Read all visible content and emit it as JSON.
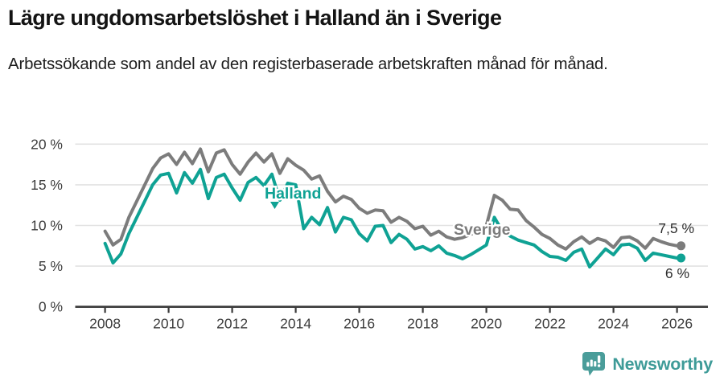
{
  "chart_data": {
    "type": "line",
    "title": "Lägre ungdomsarbetslöshet i Halland än i Sverige",
    "subtitle": "Arbetssökande som andel av den registerbaserade arbetskraften månad för månad.",
    "x_start_year": 2008,
    "x_interval_years": 0.25,
    "xlim": [
      2008,
      2026.25
    ],
    "ylim": [
      0,
      21
    ],
    "grid": true,
    "legend": "inline-labels",
    "x_ticks": [
      2008,
      2010,
      2012,
      2014,
      2016,
      2018,
      2020,
      2022,
      2024,
      2026
    ],
    "x_tick_labels": [
      "2008",
      "2010",
      "2012",
      "2014",
      "2016",
      "2018",
      "2020",
      "2022",
      "2024",
      "2026"
    ],
    "y_ticks": [
      0,
      5,
      10,
      15,
      20
    ],
    "y_tick_labels": [
      "0 %",
      "5 %",
      "10 %",
      "15 %",
      "20 %"
    ],
    "series": [
      {
        "name": "Sverige",
        "color": "#7c7c7c",
        "end_label": "7,5 %",
        "end_value": 7.5,
        "values": [
          9.3,
          7.6,
          8.3,
          11.0,
          13.0,
          15.0,
          17.0,
          18.3,
          18.8,
          17.5,
          19.0,
          17.6,
          19.4,
          16.6,
          18.9,
          19.3,
          17.5,
          16.3,
          17.8,
          18.9,
          17.8,
          18.8,
          16.4,
          18.2,
          17.4,
          16.8,
          15.7,
          16.1,
          14.2,
          12.9,
          13.6,
          13.2,
          12.1,
          11.5,
          11.9,
          11.8,
          10.4,
          11.0,
          10.5,
          9.6,
          9.9,
          8.8,
          9.3,
          8.6,
          8.3,
          8.5,
          8.9,
          9.3,
          10.0,
          13.7,
          13.1,
          12.0,
          11.9,
          10.6,
          9.8,
          8.9,
          8.4,
          7.6,
          7.1,
          8.0,
          8.6,
          7.8,
          8.4,
          8.1,
          7.3,
          8.5,
          8.6,
          8.1,
          7.2,
          8.4,
          8.0,
          7.7,
          7.5
        ]
      },
      {
        "name": "Halland",
        "color": "#0fa294",
        "end_label": "6 %",
        "end_value": 6.0,
        "values": [
          7.8,
          5.4,
          6.5,
          9.0,
          11.0,
          13.0,
          15.0,
          16.2,
          16.4,
          14.0,
          16.5,
          15.2,
          16.9,
          13.3,
          15.9,
          16.3,
          14.6,
          13.1,
          15.3,
          15.9,
          14.9,
          16.3,
          13.1,
          15.2,
          15.0,
          9.6,
          11.0,
          10.1,
          12.2,
          9.2,
          11.0,
          10.7,
          9.0,
          8.1,
          9.9,
          10.0,
          7.9,
          8.9,
          8.3,
          7.1,
          7.4,
          6.9,
          7.5,
          6.6,
          6.3,
          5.9,
          6.4,
          7.0,
          7.6,
          11.0,
          9.3,
          8.7,
          8.2,
          7.9,
          7.6,
          6.8,
          6.2,
          6.1,
          5.7,
          6.7,
          7.1,
          4.9,
          6.0,
          7.1,
          6.4,
          7.6,
          7.7,
          7.2,
          5.7,
          6.6,
          6.4,
          6.2,
          6.0
        ]
      }
    ],
    "colors": {
      "gridline": "#e2e2e2",
      "axis": "#3a3a3a",
      "tick_text": "#3d3d3d"
    }
  },
  "footer": {
    "brand": "Newsworthy",
    "brand_color": "#3e9b98",
    "icon_color": "#4a9d9a"
  }
}
